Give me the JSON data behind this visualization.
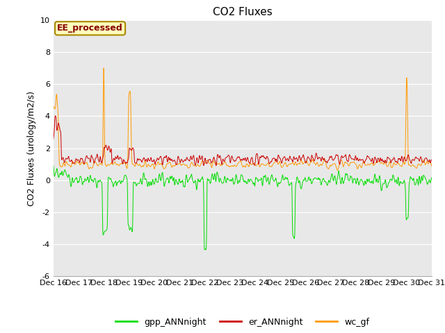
{
  "title": "CO2 Fluxes",
  "ylabel": "CO2 Fluxes (urology/m2/s)",
  "ylim": [
    -6,
    10
  ],
  "yticks": [
    -6,
    -4,
    -2,
    0,
    2,
    4,
    6,
    8,
    10
  ],
  "start_day": 16,
  "end_day": 31,
  "n_points": 1440,
  "colors": {
    "gpp": "#00dd00",
    "er": "#cc0000",
    "wc": "#ff9900"
  },
  "legend_labels": [
    "gpp_ANNnight",
    "er_ANNnight",
    "wc_gf"
  ],
  "annotation_text": "EE_processed",
  "annotation_color": "#880000",
  "annotation_bg": "#ffffbb",
  "annotation_border": "#aa8800",
  "bg_color": "#e8e8e8",
  "fig_bg": "#ffffff",
  "title_fontsize": 11,
  "label_fontsize": 9,
  "tick_fontsize": 8,
  "legend_fontsize": 9
}
